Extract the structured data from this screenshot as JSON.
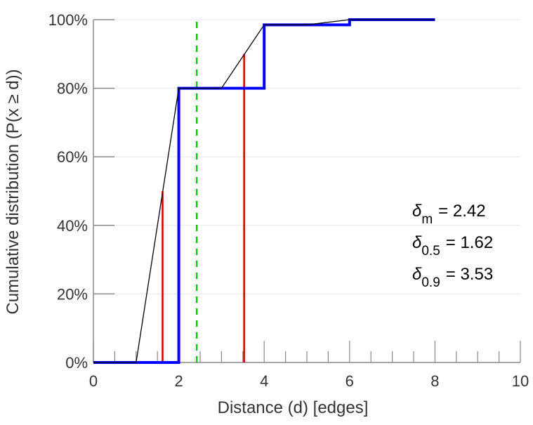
{
  "chart_data": {
    "type": "line",
    "title": "",
    "xlabel": "Distance (d) [edges]",
    "ylabel": "Cumulative distribution (P(x ≥ d))",
    "xlim": [
      0,
      10
    ],
    "ylim": [
      0,
      100
    ],
    "x_ticks": [
      0,
      2,
      4,
      6,
      8,
      10
    ],
    "x_minor_step": 0.5,
    "y_ticks": [
      0,
      20,
      40,
      60,
      80,
      100
    ],
    "y_tick_labels": [
      "0%",
      "20%",
      "40%",
      "60%",
      "80%",
      "100%"
    ],
    "grid": true,
    "series": [
      {
        "name": "step-cdf",
        "kind": "step",
        "color": "#0000ff",
        "x": [
          0,
          2,
          2,
          4,
          4,
          6,
          6,
          8
        ],
        "y": [
          0,
          0,
          80,
          80,
          98.5,
          98.5,
          100,
          100
        ]
      },
      {
        "name": "interpolated-cdf",
        "kind": "line",
        "color": "#000000",
        "x": [
          0,
          1,
          2,
          3,
          4,
          5,
          6,
          8
        ],
        "y": [
          0,
          0,
          80,
          80,
          98.5,
          98.5,
          100,
          100
        ]
      }
    ],
    "markers": [
      {
        "name": "mean",
        "x": 2.42,
        "y_top": 100,
        "color": "#00cc00",
        "style": "dashed"
      },
      {
        "name": "delta-0.5",
        "x": 1.62,
        "y_top": 50,
        "color": "#cc0000",
        "style": "solid"
      },
      {
        "name": "delta-0.9",
        "x": 3.53,
        "y_top": 90,
        "color": "#cc0000",
        "style": "solid"
      }
    ],
    "annotations": [
      {
        "symbol": "δ",
        "sub": "m",
        "text": "= 2.42"
      },
      {
        "symbol": "δ",
        "sub": "0.5",
        "text": "= 1.62"
      },
      {
        "symbol": "δ",
        "sub": "0.9",
        "text": "= 3.53"
      }
    ]
  }
}
